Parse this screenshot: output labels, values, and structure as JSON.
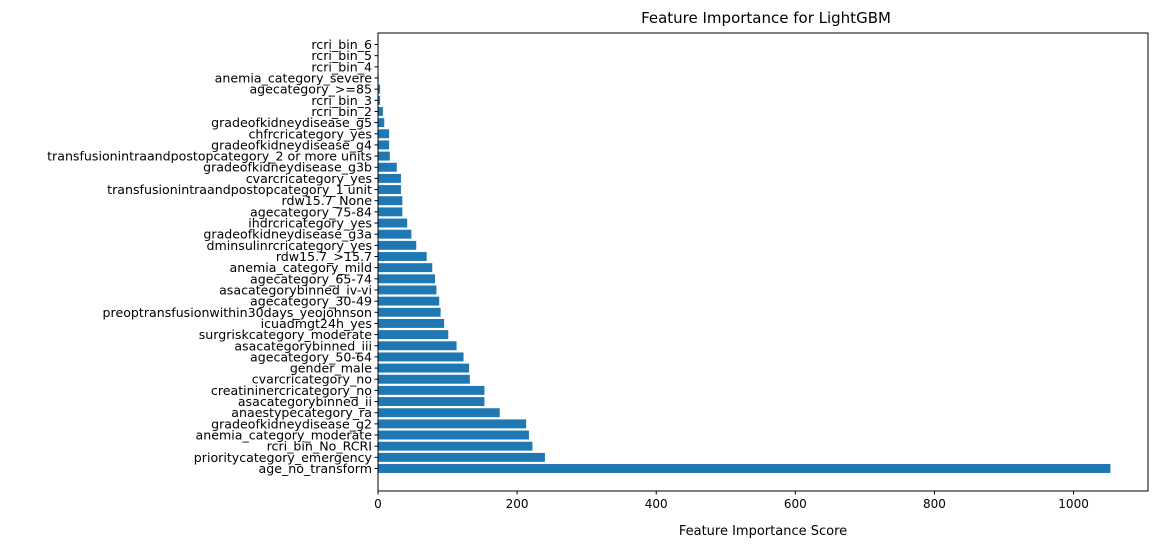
{
  "chart_data": {
    "type": "bar",
    "orientation": "horizontal",
    "title": "Feature Importance for LightGBM",
    "xlabel": "Feature Importance Score",
    "ylabel": "",
    "xlim": [
      0,
      1107
    ],
    "xticks": [
      0,
      200,
      400,
      600,
      800,
      1000
    ],
    "grid": false,
    "bar_color": "#1f77b4",
    "categories": [
      "age_no_transform",
      "prioritycategory_emergency",
      "rcri_bin_No_RCRI",
      "anemia_category_moderate",
      "gradeofkidneydisease_g2",
      "anaestypecategory_ra",
      "asacategorybinned_ii",
      "creatininercricategory_no",
      "cvarcricategory_no",
      "gender_male",
      "agecategory_50-64",
      "asacategorybinned_iii",
      "surgriskcategory_moderate",
      "icuadmgt24h_yes",
      "preoptransfusionwithin30days_yeojohnson",
      "agecategory_30-49",
      "asacategorybinned_iv-vi",
      "agecategory_65-74",
      "anemia_category_mild",
      "rdw15.7_>15.7",
      "dminsulinrcricategory_yes",
      "gradeofkidneydisease_g3a",
      "ihdrcricategory_yes",
      "agecategory_75-84",
      "rdw15.7_None",
      "transfusionintraandpostopcategory_1 unit",
      "cvarcricategory_yes",
      "gradeofkidneydisease_g3b",
      "transfusionintraandpostopcategory_2 or more units",
      "gradeofkidneydisease_g4",
      "chfrcricategory_yes",
      "gradeofkidneydisease_g5",
      "rcri_bin_2",
      "rcri_bin_3",
      "agecategory_>=85",
      "anemia_category_severe",
      "rcri_bin_4",
      "rcri_bin_5",
      "rcri_bin_6"
    ],
    "values": [
      1053,
      240,
      222,
      217,
      213,
      175,
      153,
      153,
      132,
      131,
      123,
      113,
      101,
      95,
      90,
      88,
      84,
      82,
      78,
      70,
      55,
      48,
      42,
      35,
      35,
      33,
      33,
      27,
      17,
      16,
      16,
      9,
      7,
      3,
      3,
      1,
      0,
      0,
      0
    ]
  }
}
